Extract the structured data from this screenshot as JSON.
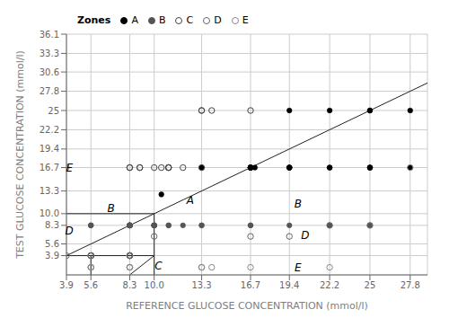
{
  "chart_data": {
    "type": "scatter",
    "xlabel": "REFERENCE GLUCOSE CONCENTRATION (mmol/l)",
    "ylabel": "TEST GLUCOSE CONCENTRATION (mmol/l)",
    "xlim": [
      3.9,
      29.0
    ],
    "ylim": [
      1.1,
      36.1
    ],
    "xticks": [
      3.9,
      5.6,
      8.3,
      {
        "value": 10.0,
        "label": "10.0"
      },
      13.3,
      16.7,
      19.4,
      22.2,
      25.0,
      27.8
    ],
    "yticks": [
      3.9,
      5.6,
      8.3,
      {
        "value": 10.0,
        "label": "10.0"
      },
      13.3,
      16.7,
      19.4,
      22.2,
      25.0,
      27.8,
      30.6,
      33.3,
      36.1
    ],
    "grid": true,
    "legend": "upper left",
    "legend_title": "Zones",
    "series": [
      {
        "name": "A",
        "color": "#000000",
        "marker": "circle",
        "x": [
          10.5,
          13.3,
          16.7,
          16.7,
          16.7,
          16.7,
          16.7,
          16.7,
          16.7,
          16.7,
          17.0,
          19.4,
          19.4,
          19.4,
          19.4,
          19.4,
          22.2,
          22.2,
          22.2,
          25.0,
          25.0,
          25.0,
          25.0,
          25.0,
          27.8,
          27.8
        ],
        "y": [
          12.8,
          16.7,
          16.7,
          16.7,
          16.7,
          16.7,
          16.7,
          16.7,
          16.7,
          16.7,
          16.7,
          16.7,
          16.7,
          16.7,
          16.7,
          25.0,
          16.7,
          16.7,
          25.0,
          16.7,
          16.7,
          16.7,
          25.0,
          25.0,
          16.7,
          25.0
        ]
      },
      {
        "name": "B",
        "color": "#555555",
        "marker": "circle",
        "x": [
          5.6,
          5.6,
          5.6,
          8.3,
          8.3,
          8.3,
          8.3,
          8.3,
          8.3,
          8.3,
          8.3,
          8.3,
          8.3,
          8.3,
          8.3,
          8.3,
          8.3,
          10.0,
          10.0,
          10.0,
          10.0,
          10.0,
          10.0,
          10.0,
          10.0,
          10.0,
          11.0,
          11.0,
          12.0,
          13.3,
          13.3,
          16.7,
          16.7,
          19.4,
          22.2,
          22.2,
          25.0
        ],
        "y": [
          8.3,
          8.3,
          8.3,
          8.3,
          8.3,
          8.3,
          8.3,
          8.3,
          8.3,
          8.3,
          8.3,
          8.3,
          8.3,
          8.3,
          8.3,
          8.3,
          8.3,
          8.3,
          8.3,
          8.3,
          8.3,
          8.3,
          8.3,
          8.3,
          8.3,
          8.3,
          8.3,
          8.3,
          8.3,
          8.3,
          8.3,
          8.3,
          8.3,
          8.3,
          8.3,
          8.3,
          8.3
        ]
      },
      {
        "name": "C",
        "color": "#444444",
        "marker": "open_circle",
        "x": [
          8.3,
          8.3,
          9.0,
          9.0,
          10.0,
          10.5,
          11.0,
          11.0,
          11.0,
          12.0,
          13.3,
          13.3,
          13.3,
          14.0,
          16.7
        ],
        "y": [
          16.7,
          16.7,
          16.7,
          16.7,
          16.7,
          16.7,
          16.7,
          16.7,
          16.7,
          16.7,
          16.7,
          25.0,
          25.0,
          25.0,
          25.0
        ]
      },
      {
        "name": "D",
        "color": "#666666",
        "marker": "open_circle",
        "x": [
          3.9,
          5.6,
          5.6,
          5.6,
          5.6,
          5.6,
          5.6,
          8.3,
          8.3,
          8.3,
          8.3,
          8.3,
          8.3,
          8.3,
          8.3,
          8.3,
          8.3,
          10.0,
          16.7,
          19.4,
          22.2,
          25.0
        ],
        "y": [
          3.9,
          3.9,
          3.9,
          3.9,
          3.9,
          3.9,
          3.9,
          3.9,
          3.9,
          3.9,
          3.9,
          3.9,
          3.9,
          3.9,
          3.9,
          3.9,
          3.9,
          6.7,
          6.7,
          6.7,
          8.3,
          8.3
        ]
      },
      {
        "name": "E",
        "color": "#888888",
        "marker": "open_circle",
        "x": [
          3.9,
          5.6,
          5.6,
          5.6,
          8.3,
          8.3,
          8.3,
          13.3,
          13.3,
          14.0,
          16.7,
          22.2,
          27.8
        ],
        "y": [
          16.7,
          2.2,
          2.2,
          2.2,
          2.2,
          2.2,
          2.2,
          2.2,
          2.2,
          2.2,
          2.2,
          2.2,
          16.7
        ]
      }
    ],
    "lines": [
      {
        "x": [
          0,
          36.1
        ],
        "y": [
          0,
          36.1
        ]
      },
      {
        "x": [
          3.9,
          10.0
        ],
        "y": [
          10.0,
          10.0
        ]
      },
      {
        "x": [
          10.0,
          10.0
        ],
        "y": [
          3.9,
          10.0
        ]
      },
      {
        "x": [
          3.9,
          10.0
        ],
        "y": [
          3.9,
          3.9
        ]
      },
      {
        "x": [
          10.0,
          10.0
        ],
        "y": [
          1.1,
          3.9
        ]
      },
      {
        "x": [
          8.3,
          10.0
        ],
        "y": [
          1.1,
          3.9
        ]
      },
      {
        "x": [
          5.6,
          5.6
        ],
        "y": [
          1.1,
          3.9
        ]
      }
    ],
    "annotations": [
      {
        "text": "A",
        "x": 12.5,
        "y": 12.0
      },
      {
        "text": "B",
        "x": 7.0,
        "y": 10.8
      },
      {
        "text": "B",
        "x": 20.0,
        "y": 11.5
      },
      {
        "text": "C",
        "x": 10.3,
        "y": 2.5
      },
      {
        "text": "D",
        "x": 4.1,
        "y": 7.5
      },
      {
        "text": "D",
        "x": 20.5,
        "y": 6.9
      },
      {
        "text": "E",
        "x": 4.1,
        "y": 16.7
      },
      {
        "text": "E",
        "x": 20.0,
        "y": 2.2
      }
    ]
  }
}
